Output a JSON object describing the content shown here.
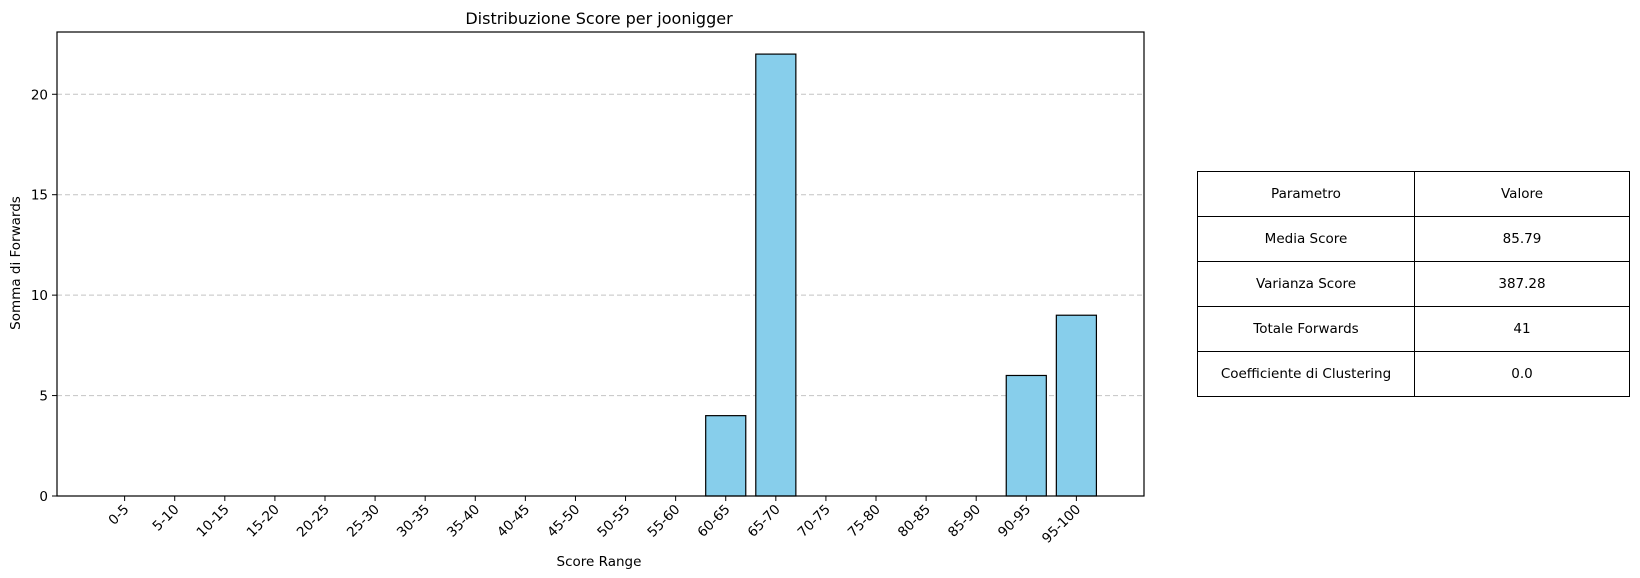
{
  "chart_data": {
    "type": "bar",
    "title": "Distribuzione Score per joonigger",
    "xlabel": "Score Range",
    "ylabel": "Somma di Forwards",
    "categories": [
      "0-5",
      "5-10",
      "10-15",
      "15-20",
      "20-25",
      "25-30",
      "30-35",
      "35-40",
      "40-45",
      "45-50",
      "50-55",
      "55-60",
      "60-65",
      "65-70",
      "70-75",
      "75-80",
      "80-85",
      "85-90",
      "90-95",
      "95-100"
    ],
    "values": [
      0,
      0,
      0,
      0,
      0,
      0,
      0,
      0,
      0,
      0,
      0,
      0,
      4,
      22,
      0,
      0,
      0,
      0,
      6,
      9
    ],
    "ylim": [
      0,
      23.1
    ],
    "yticks": [
      0,
      5,
      10,
      15,
      20
    ],
    "grid": "y-dashed",
    "bar_color": "#87CEEB",
    "edge_color": "#000000"
  },
  "table": {
    "header": {
      "param": "Parametro",
      "value": "Valore"
    },
    "rows": [
      {
        "param": "Media Score",
        "value": "85.79"
      },
      {
        "param": "Varianza Score",
        "value": "387.28"
      },
      {
        "param": "Totale Forwards",
        "value": "41"
      },
      {
        "param": "Coefficiente di Clustering",
        "value": "0.0"
      }
    ]
  }
}
